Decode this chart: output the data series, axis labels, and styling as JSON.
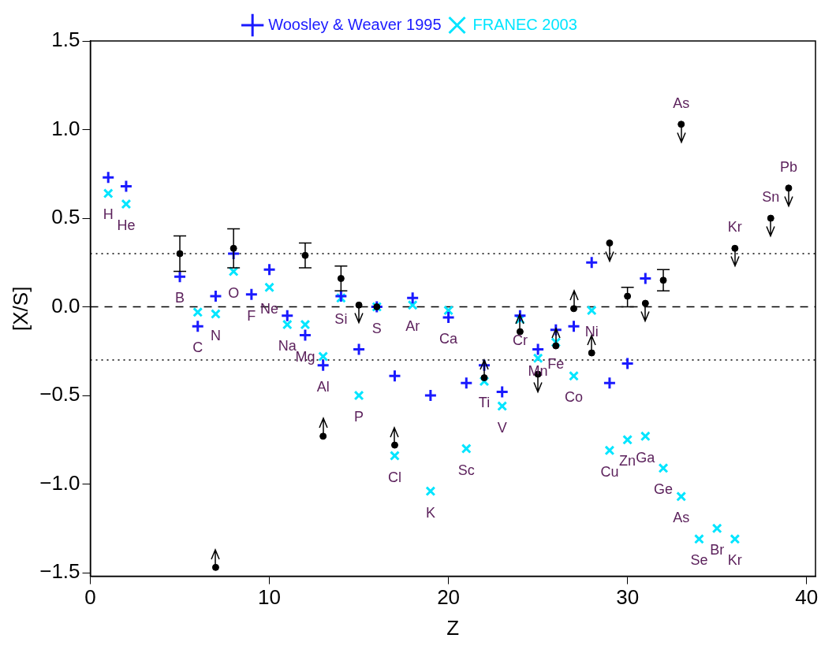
{
  "chart_data": {
    "type": "scatter",
    "xlabel": "Z",
    "ylabel": "[X/S]",
    "xlim": [
      0,
      40.5
    ],
    "xticks": [
      0,
      10,
      20,
      30,
      40
    ],
    "ylim": [
      -1.52,
      1.5
    ],
    "yticks": [
      {
        "value": -1.5,
        "label": "−1.5"
      },
      {
        "value": -1,
        "label": "−1.0"
      },
      {
        "value": -0.5,
        "label": "−0.5"
      },
      {
        "value": 0,
        "label": "0.0"
      },
      {
        "value": 0.5,
        "label": "0.5"
      },
      {
        "value": 1,
        "label": "1.0"
      },
      {
        "value": 1.5,
        "label": "1.5"
      }
    ],
    "grid": false,
    "legend": "top",
    "series": [
      {
        "name": "Woosley & Weaver 1995",
        "color": "#1a1aff",
        "marker": "cross",
        "x": [
          1,
          2,
          5,
          6,
          7,
          8,
          9,
          10,
          11,
          12,
          13,
          14,
          15,
          16,
          17,
          18,
          19,
          20,
          21,
          22,
          23,
          24,
          25,
          26,
          27,
          28,
          29,
          30,
          31
        ],
        "values": [
          0.73,
          0.68,
          0.17,
          -0.11,
          0.06,
          0.3,
          0.07,
          0.21,
          -0.05,
          -0.16,
          -0.33,
          0.06,
          -0.24,
          0.0,
          -0.39,
          0.05,
          -0.5,
          -0.06,
          -0.43,
          -0.33,
          -0.48,
          -0.05,
          -0.24,
          -0.13,
          -0.11,
          0.25,
          -0.43,
          -0.32,
          0.16
        ]
      },
      {
        "name": "FRANEC 2003",
        "color": "#00e5ff",
        "marker": "x",
        "x": [
          1,
          2,
          6,
          7,
          8,
          10,
          11,
          12,
          13,
          14,
          15,
          16,
          17,
          18,
          19,
          20,
          21,
          22,
          23,
          24,
          25,
          26,
          27,
          28,
          29,
          30,
          31,
          32,
          33,
          34,
          35,
          36
        ],
        "values": [
          0.64,
          0.58,
          -0.03,
          -0.04,
          0.2,
          0.11,
          -0.1,
          -0.1,
          -0.28,
          0.05,
          -0.5,
          0.0,
          -0.84,
          0.01,
          -1.04,
          -0.02,
          -0.8,
          -0.42,
          -0.56,
          -0.07,
          -0.29,
          -0.2,
          -0.39,
          -0.02,
          -0.81,
          -0.75,
          -0.73,
          -0.91,
          -1.07,
          -1.31,
          -1.25,
          -1.31
        ]
      },
      {
        "color": "#000000",
        "marker": "circle",
        "x": [
          5,
          7,
          8,
          12,
          13,
          14,
          15,
          16,
          17,
          22,
          24,
          25,
          26,
          27,
          28,
          29,
          30,
          31,
          32,
          33,
          36,
          38,
          39
        ],
        "values": [
          0.3,
          -1.47,
          0.33,
          0.29,
          -0.73,
          0.16,
          0.01,
          0.0,
          -0.78,
          -0.4,
          -0.14,
          -0.38,
          -0.22,
          -0.01,
          -0.26,
          0.36,
          0.06,
          0.02,
          0.15,
          1.03,
          0.33,
          0.5,
          0.67
        ],
        "errors": [
          [
            0.2,
            0.4
          ],
          [
            -1.47,
            -1.37
          ],
          [
            0.22,
            0.44
          ],
          [
            0.22,
            0.36
          ],
          [
            -0.73,
            -0.63
          ],
          [
            0.09,
            0.23
          ],
          [
            -0.09,
            0.01
          ],
          null,
          [
            -0.78,
            -0.68
          ],
          [
            -0.4,
            -0.3
          ],
          [
            -0.14,
            -0.04
          ],
          [
            -0.48,
            -0.38
          ],
          [
            -0.22,
            -0.12
          ],
          [
            -0.01,
            0.09
          ],
          [
            -0.26,
            -0.16
          ],
          [
            0.26,
            0.36
          ],
          [
            0.0,
            0.11
          ],
          [
            -0.08,
            0.02
          ],
          [
            0.09,
            0.21
          ],
          [
            0.93,
            1.03
          ],
          [
            0.23,
            0.33
          ],
          [
            0.4,
            0.5
          ],
          [
            0.57,
            0.67
          ]
        ]
      }
    ],
    "ref_lines": [
      {
        "axis": "y",
        "value": 0.3,
        "line_style": "dotted",
        "color": "#000000"
      },
      {
        "axis": "y",
        "value": 0,
        "line_style": "dashed",
        "color": "#000000"
      },
      {
        "axis": "y",
        "value": -0.3,
        "line_style": "dotted",
        "color": "#000000"
      }
    ],
    "annotations": [
      {
        "text": "H",
        "x": 1,
        "y": 0.64
      },
      {
        "text": "He",
        "x": 2,
        "y": 0.58
      },
      {
        "text": "B",
        "x": 5,
        "y": 0.17
      },
      {
        "text": "C",
        "x": 6,
        "y": -0.11
      },
      {
        "text": "N",
        "x": 7,
        "y": -0.04
      },
      {
        "text": "O",
        "x": 8,
        "y": 0.2
      },
      {
        "text": "F",
        "x": 9,
        "y": 0.07
      },
      {
        "text": "Ne",
        "x": 10,
        "y": 0.11
      },
      {
        "text": "Na",
        "x": 11,
        "y": -0.1
      },
      {
        "text": "Mg",
        "x": 12,
        "y": -0.16
      },
      {
        "text": "Al",
        "x": 13,
        "y": -0.33
      },
      {
        "text": "Si",
        "x": 14,
        "y": 0.05
      },
      {
        "text": "P",
        "x": 15,
        "y": -0.5
      },
      {
        "text": "S",
        "x": 16,
        "y": 0.0
      },
      {
        "text": "Cl",
        "x": 17,
        "y": -0.84
      },
      {
        "text": "Ar",
        "x": 18,
        "y": 0.01
      },
      {
        "text": "K",
        "x": 19,
        "y": -1.04
      },
      {
        "text": "Ca",
        "x": 20,
        "y": -0.06
      },
      {
        "text": "Sc",
        "x": 21,
        "y": -0.8
      },
      {
        "text": "Ti",
        "x": 22,
        "y": -0.42
      },
      {
        "text": "V",
        "x": 23,
        "y": -0.56
      },
      {
        "text": "Cr",
        "x": 24,
        "y": -0.07
      },
      {
        "text": "Mn",
        "x": 25,
        "y": -0.24
      },
      {
        "text": "Fe",
        "x": 26,
        "y": -0.2
      },
      {
        "text": "Co",
        "x": 27,
        "y": -0.39
      },
      {
        "text": "Ni",
        "x": 28,
        "y": -0.02
      },
      {
        "text": "Cu",
        "x": 29,
        "y": -0.81
      },
      {
        "text": "Zn",
        "x": 30,
        "y": -0.75
      },
      {
        "text": "Ga",
        "x": 31,
        "y": -0.73
      },
      {
        "text": "Ge",
        "x": 32,
        "y": -0.91
      },
      {
        "text": "As",
        "x": 33,
        "y": -1.07
      },
      {
        "text": "Se",
        "x": 34,
        "y": -1.31
      },
      {
        "text": "Br",
        "x": 35,
        "y": -1.25
      },
      {
        "text": "Kr",
        "x": 36,
        "y": -1.31
      },
      {
        "text": "As",
        "x": 33,
        "y": 1.03
      },
      {
        "text": "Kr",
        "x": 36,
        "y": 0.33
      },
      {
        "text": "Sn",
        "x": 38,
        "y": 0.5
      },
      {
        "text": "Pb",
        "x": 39,
        "y": 0.67
      }
    ]
  }
}
